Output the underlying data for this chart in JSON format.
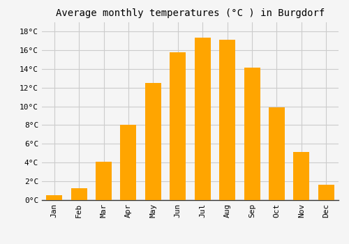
{
  "title": "Average monthly temperatures (°C ) in Burgdorf",
  "months": [
    "Jan",
    "Feb",
    "Mar",
    "Apr",
    "May",
    "Jun",
    "Jul",
    "Aug",
    "Sep",
    "Oct",
    "Nov",
    "Dec"
  ],
  "values": [
    0.5,
    1.3,
    4.1,
    8.0,
    12.5,
    15.8,
    17.3,
    17.1,
    14.1,
    9.9,
    5.1,
    1.6
  ],
  "bar_color": "#FFA500",
  "background_color": "#f5f5f5",
  "plot_bg_color": "#f5f5f5",
  "grid_color": "#cccccc",
  "ylim": [
    0,
    19
  ],
  "yticks": [
    0,
    2,
    4,
    6,
    8,
    10,
    12,
    14,
    16,
    18
  ],
  "title_fontsize": 10,
  "tick_fontsize": 8,
  "font_family": "monospace"
}
